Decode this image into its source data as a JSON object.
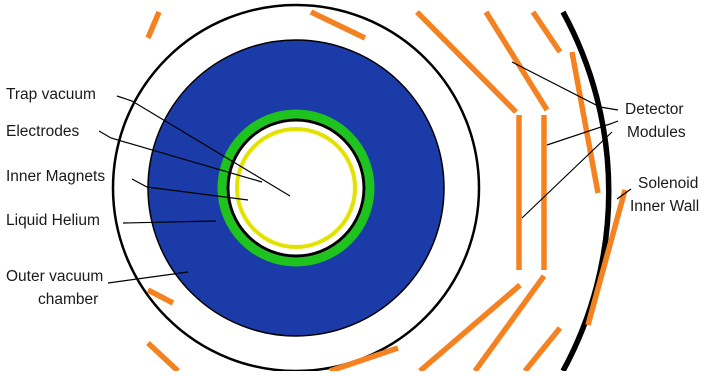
{
  "labels": {
    "trap_vacuum": "Trap vacuum",
    "electrodes": "Electrodes",
    "inner_magnets": "Inner Magnets",
    "liquid_helium": "Liquid Helium",
    "outer_vacuum_line1": "Outer vacuum",
    "outer_vacuum_line2": "chamber",
    "detector_line1": "Detector",
    "detector_line2": "Modules",
    "solenoid_line1": "Solenoid",
    "solenoid_line2": "Inner Wall"
  },
  "colors": {
    "liquid_helium": "#1a3ba8",
    "electrodes": "#1ec31e",
    "inner_magnets": "#f2f200",
    "detector_modules": "#f58220",
    "solenoid_wall": "#000000",
    "leader_lines": "#000000"
  }
}
